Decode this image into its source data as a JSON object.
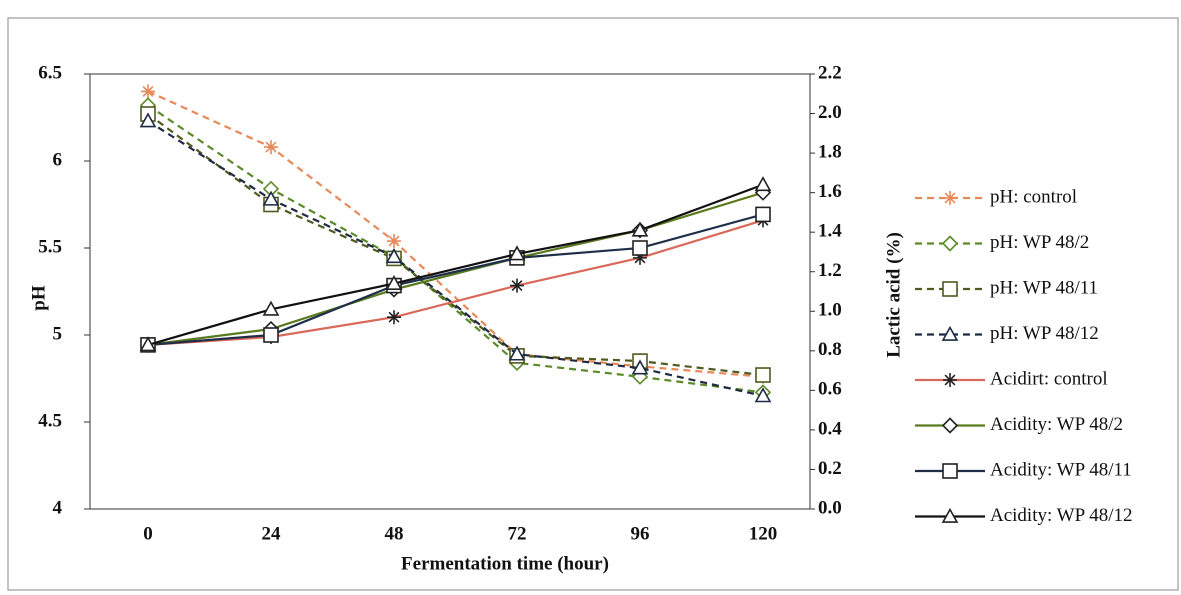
{
  "chart_data": {
    "type": "line",
    "x_label": "Fermentation time (hour)",
    "y_label": "pH",
    "y2_label": "Lactic acid (%)",
    "categories": [
      "0",
      "24",
      "48",
      "72",
      "96",
      "120"
    ],
    "ylim": [
      4,
      6.5
    ],
    "yticks": [
      4,
      4.5,
      5,
      5.5,
      6,
      6.5
    ],
    "y2lim": [
      0,
      2.2
    ],
    "y2ticks": [
      {
        "value": 0,
        "label": "0.0"
      },
      0.2,
      0.4,
      0.6,
      0.8,
      {
        "value": 1,
        "label": "1.0"
      },
      1.2,
      1.4,
      1.6,
      1.8,
      {
        "value": 2,
        "label": "2.0"
      },
      2.2
    ],
    "grid": false,
    "legend": "right",
    "series": [
      {
        "name": "pH: control",
        "color": "#e8895a",
        "dash": true,
        "marker": "star",
        "values": [
          6.4,
          6.08,
          5.54,
          4.89,
          4.82,
          4.76
        ]
      },
      {
        "name": "pH: WP 48/2",
        "color": "#5b8a2a",
        "dash": true,
        "marker": "diamond",
        "values": [
          6.32,
          5.84,
          5.45,
          4.84,
          4.76,
          4.67
        ]
      },
      {
        "name": "pH: WP 48/11",
        "color": "#4f5a1f",
        "dash": true,
        "marker": "square",
        "values": [
          6.27,
          5.75,
          5.44,
          4.88,
          4.85,
          4.77
        ]
      },
      {
        "name": "pH: WP 48/12",
        "color": "#1f2a44",
        "dash": true,
        "marker": "triangle",
        "values": [
          6.23,
          5.78,
          5.45,
          4.89,
          4.81,
          4.65
        ]
      },
      {
        "name": "Acidirt: control",
        "color": "#d9695a",
        "dash": false,
        "marker": "star",
        "axis": "y2",
        "values": [
          0.83,
          0.87,
          0.97,
          1.13,
          1.27,
          1.46
        ]
      },
      {
        "name": "Acidity: WP 48/2",
        "color": "#5a7a1e",
        "dash": false,
        "marker": "diamond",
        "axis": "y2",
        "values": [
          0.83,
          0.91,
          1.11,
          1.27,
          1.41,
          1.6
        ]
      },
      {
        "name": "Acidity: WP 48/11",
        "color": "#1f2f4a",
        "dash": false,
        "marker": "square",
        "axis": "y2",
        "values": [
          0.83,
          0.88,
          1.13,
          1.27,
          1.32,
          1.49
        ]
      },
      {
        "name": "Acidity: WP 48/12",
        "color": "#111111",
        "dash": false,
        "marker": "triangle",
        "axis": "y2",
        "values": [
          0.83,
          1.01,
          1.14,
          1.29,
          1.41,
          1.64
        ]
      }
    ]
  }
}
